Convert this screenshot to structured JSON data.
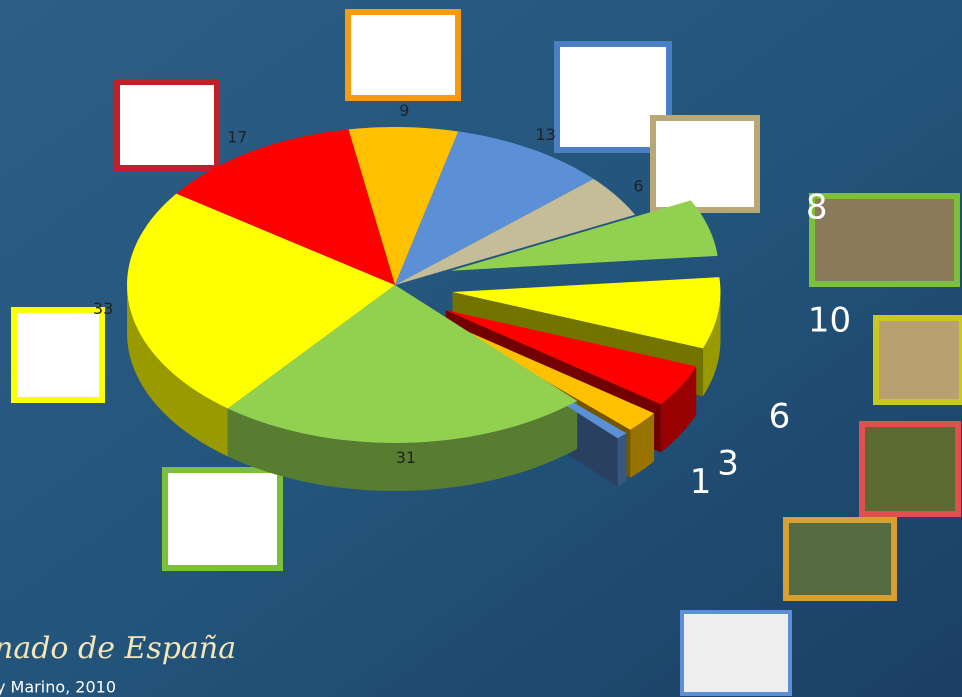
{
  "chart_data": {
    "type": "pie",
    "values": [
      9,
      13,
      6,
      8,
      10,
      6,
      3,
      1,
      31,
      33,
      17
    ],
    "colors": [
      "#ffc000",
      "#5b8fd6",
      "#c4bd97",
      "#92d050",
      "#ffff00",
      "#ff0000",
      "#ffc000",
      "#5b8fd6",
      "#92d050",
      "#ffff00",
      "#ff0000"
    ],
    "exploded": [
      false,
      false,
      false,
      true,
      true,
      true,
      true,
      true,
      false,
      false,
      false
    ],
    "start_angle": -100
  },
  "footer": {
    "title": "nado de España",
    "source": "y Marino, 2010"
  }
}
